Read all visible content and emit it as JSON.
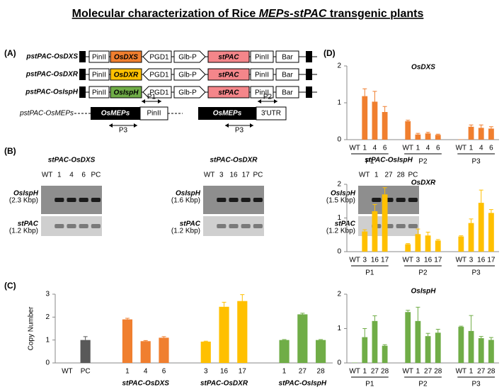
{
  "title_parts": [
    "Molecular characterization of Rice ",
    "MEPs-stPAC",
    " transgenic plants"
  ],
  "panel_labels": [
    "(A)",
    "(B)",
    "(C)",
    "(D)"
  ],
  "constructs": [
    {
      "name": "pstPAC-OsDXS",
      "elements": [
        "PinII",
        "OsDXS",
        "PGD1",
        "Glb-P",
        "stPAC",
        "PinII",
        "Bar"
      ],
      "color": "#f07f2f"
    },
    {
      "name": "pstPAC-OsDXR",
      "elements": [
        "PinII",
        "OsDXR",
        "PGD1",
        "Glb-P",
        "stPAC",
        "PinII",
        "Bar"
      ],
      "color": "#ffc000"
    },
    {
      "name": "pstPAC-OsIspH",
      "elements": [
        "PinII",
        "OsIspH",
        "PGD1",
        "Glb-P",
        "stPAC",
        "PinII",
        "Bar"
      ],
      "color": "#70ad47"
    }
  ],
  "cassette": {
    "name": "pstPAC-OsMEPs",
    "parts": [
      {
        "gene": "OsMEPs",
        "term": "PinII",
        "primers": [
          "P1",
          "P3"
        ]
      },
      {
        "gene": "OsMEPs",
        "term": "3'UTR",
        "primers": [
          "P2",
          "P3"
        ]
      }
    ]
  },
  "gels": [
    {
      "title": "stPAC-OsDXS",
      "lanes": [
        "WT",
        "1",
        "4",
        "6",
        "PC"
      ],
      "rows": [
        {
          "name": "OsIspH",
          "size": "(2.3 Kbp)"
        },
        {
          "name": "stPAC",
          "size": "(1.2 Kbp)"
        }
      ]
    },
    {
      "title": "stPAC-OsDXR",
      "lanes": [
        "WT",
        "3",
        "16",
        "17",
        "PC"
      ],
      "rows": [
        {
          "name": "OsIspH",
          "size": "(1.6 Kbp)"
        },
        {
          "name": "stPAC",
          "size": "(1.2 Kbp)"
        }
      ]
    },
    {
      "title": "stPAC-OsIspH",
      "lanes": [
        "WT",
        "1",
        "27",
        "28",
        "PC"
      ],
      "rows": [
        {
          "name": "OsIspH",
          "size": "(1.5 Kbp)"
        },
        {
          "name": "stPAC",
          "size": "(1.2 Kbp)"
        }
      ]
    }
  ],
  "chart_data": [
    {
      "type": "bar",
      "ylabel": "Copy Number",
      "ylim": [
        0,
        3
      ],
      "yticks": [
        0,
        1,
        2,
        3
      ],
      "color": "#595959",
      "groups": [
        {
          "categories": [
            "WT",
            "PC"
          ],
          "values": [
            0,
            1.0
          ],
          "errors": [
            null,
            0.15
          ]
        },
        {
          "label": "stPAC-OsDXS",
          "color": "#f07f2f",
          "categories": [
            "1",
            "4",
            "6"
          ],
          "values": [
            1.9,
            0.95,
            1.1
          ],
          "errors": [
            0.05,
            0.03,
            0.05
          ]
        },
        {
          "label": "stPAC-OsDXR",
          "color": "#ffc000",
          "categories": [
            "3",
            "16",
            "17"
          ],
          "values": [
            0.93,
            2.45,
            2.7
          ],
          "errors": [
            0.02,
            0.2,
            0.28
          ]
        },
        {
          "label": "stPAC-OsIspH",
          "color": "#70ad47",
          "categories": [
            "1",
            "27",
            "28"
          ],
          "values": [
            1.0,
            2.12,
            1.0
          ],
          "errors": [
            0.02,
            0.05,
            0.02
          ]
        }
      ]
    },
    {
      "type": "bar",
      "title": "OsDXS",
      "ylim": [
        0,
        2
      ],
      "yticks": [
        0,
        1,
        2
      ],
      "color": "#f07f2f",
      "group_lines": true,
      "groups": [
        {
          "label": "P1",
          "categories": [
            "WT",
            "1",
            "4",
            "6"
          ],
          "values": [
            0,
            1.18,
            1.03,
            0.75
          ],
          "errors": [
            null,
            0.2,
            0.28,
            0.15
          ]
        },
        {
          "label": "P2",
          "categories": [
            "WT",
            "1",
            "4",
            "6"
          ],
          "values": [
            0.5,
            0.14,
            0.17,
            0.13
          ],
          "errors": [
            0.03,
            0.03,
            0.03,
            0.02
          ]
        },
        {
          "label": "P3",
          "categories": [
            "WT",
            "1",
            "4",
            "6"
          ],
          "values": [
            0.01,
            0.35,
            0.32,
            0.3
          ],
          "errors": [
            null,
            0.05,
            0.08,
            0.05
          ]
        }
      ]
    },
    {
      "type": "bar",
      "title": "OsDXR",
      "ylim": [
        0,
        2
      ],
      "yticks": [
        0,
        1,
        2
      ],
      "color": "#ffc000",
      "group_lines": true,
      "groups": [
        {
          "label": "P1",
          "categories": [
            "WT",
            "3",
            "16",
            "17"
          ],
          "values": [
            0,
            0.6,
            1.2,
            1.7
          ],
          "errors": [
            null,
            0.05,
            0.2,
            0.2
          ]
        },
        {
          "label": "P2",
          "categories": [
            "WT",
            "3",
            "16",
            "17"
          ],
          "values": [
            0.22,
            0.52,
            0.48,
            0.33
          ],
          "errors": [
            0.02,
            0.15,
            0.1,
            0.03
          ]
        },
        {
          "label": "P3",
          "categories": [
            "WT",
            "3",
            "16",
            "17"
          ],
          "values": [
            0.45,
            0.85,
            1.45,
            1.15
          ],
          "errors": [
            0.02,
            0.12,
            0.38,
            0.1
          ]
        }
      ]
    },
    {
      "type": "bar",
      "title": "OsIspH",
      "ylim": [
        0,
        2
      ],
      "yticks": [
        0,
        1,
        2
      ],
      "color": "#70ad47",
      "group_lines": true,
      "groups": [
        {
          "label": "P1",
          "categories": [
            "WT",
            "1",
            "27",
            "28"
          ],
          "values": [
            0.01,
            0.75,
            1.22,
            0.5
          ],
          "errors": [
            null,
            0.25,
            0.15,
            0.03
          ]
        },
        {
          "label": "P2",
          "categories": [
            "WT",
            "1",
            "27",
            "28"
          ],
          "values": [
            1.48,
            1.22,
            0.78,
            0.88
          ],
          "errors": [
            0.05,
            0.4,
            0.08,
            0.1
          ]
        },
        {
          "label": "P3",
          "categories": [
            "WT",
            "1",
            "27",
            "28"
          ],
          "values": [
            1.05,
            0.93,
            0.72,
            0.67
          ],
          "errors": [
            0.02,
            0.45,
            0.05,
            0.07
          ]
        }
      ]
    }
  ]
}
